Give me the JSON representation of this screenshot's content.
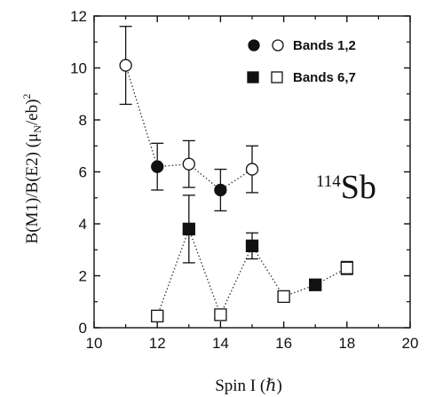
{
  "chart_data": {
    "type": "scatter",
    "xlabel": "Spin I (ℏ)",
    "ylabel": "B(M1)/B(E2) (μN/eb)2",
    "xlim": [
      10,
      20
    ],
    "ylim": [
      0,
      12
    ],
    "x_ticks": [
      10,
      12,
      14,
      16,
      18,
      20
    ],
    "y_ticks": [
      0,
      2,
      4,
      6,
      8,
      10,
      12
    ],
    "grid": false,
    "legend_position": "top-right",
    "annotation": {
      "mass": "114",
      "element": "Sb"
    },
    "legend": [
      {
        "label": "Bands 1,2",
        "markers": [
          "filled-circle",
          "open-circle"
        ]
      },
      {
        "label": "Bands 6,7",
        "markers": [
          "filled-square",
          "open-square"
        ]
      }
    ],
    "series": [
      {
        "band": "Bands 1,2",
        "marker": "circle",
        "line": "dotted",
        "points": [
          {
            "x": 11,
            "y": 10.1,
            "err": 1.5,
            "filled": false
          },
          {
            "x": 12,
            "y": 6.2,
            "err": 0.9,
            "filled": true
          },
          {
            "x": 13,
            "y": 6.3,
            "err": 0.9,
            "filled": false
          },
          {
            "x": 14,
            "y": 5.3,
            "err": 0.8,
            "filled": true
          },
          {
            "x": 15,
            "y": 6.1,
            "err": 0.9,
            "filled": false
          }
        ]
      },
      {
        "band": "Bands 6,7",
        "marker": "square",
        "line": "dotted",
        "points": [
          {
            "x": 12,
            "y": 0.45,
            "err": 0.1,
            "filled": false
          },
          {
            "x": 13,
            "y": 3.8,
            "err": 1.3,
            "filled": true
          },
          {
            "x": 14,
            "y": 0.5,
            "err": 0.1,
            "filled": false
          },
          {
            "x": 15,
            "y": 3.15,
            "err": 0.5,
            "filled": true
          },
          {
            "x": 16,
            "y": 1.2,
            "err": 0.15,
            "filled": false
          },
          {
            "x": 17,
            "y": 1.65,
            "err": 0.2,
            "filled": true
          },
          {
            "x": 18,
            "y": 2.3,
            "err": 0.25,
            "filled": false
          }
        ]
      }
    ]
  }
}
